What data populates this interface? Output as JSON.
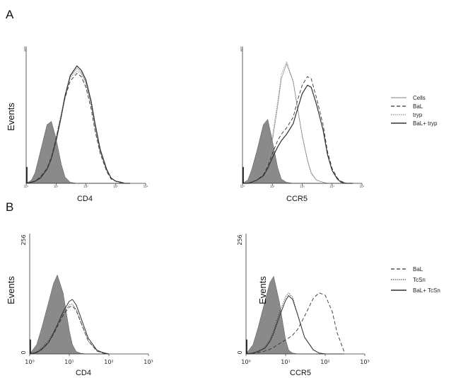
{
  "panels": {
    "A": {
      "label": "A"
    },
    "B": {
      "label": "B"
    }
  },
  "colors": {
    "filled": "#8a8a8a",
    "line": "#333333"
  },
  "chart_data": [
    {
      "id": "A-CD4",
      "type": "line",
      "panel": "A",
      "xlabel": "CD4",
      "ylabel": "Events",
      "xscale": "log",
      "xlim": [
        1,
        10000
      ],
      "xticks": [
        "10⁰",
        "10¹",
        "10²",
        "10³",
        "10⁴"
      ],
      "ylim": [
        0,
        128
      ],
      "yticks": [
        "128"
      ],
      "x": [
        1,
        1.5,
        2,
        3,
        5,
        7,
        10,
        15,
        20,
        30,
        50,
        70,
        100,
        150,
        200,
        300,
        500,
        700,
        1000,
        1500,
        2000,
        3000
      ],
      "filled": [
        0,
        3,
        10,
        30,
        55,
        58,
        42,
        18,
        6,
        1,
        0,
        0,
        0,
        0,
        0,
        0,
        0,
        0,
        0,
        0,
        0,
        0
      ],
      "series": [
        {
          "name": "Cells",
          "style": "solid",
          "values": [
            0,
            1,
            2,
            5,
            12,
            22,
            38,
            62,
            80,
            100,
            108,
            104,
            95,
            75,
            55,
            30,
            12,
            5,
            2,
            1,
            0,
            0
          ]
        },
        {
          "name": "BaL",
          "style": "dashed",
          "values": [
            0,
            1,
            2,
            6,
            14,
            25,
            42,
            64,
            80,
            96,
            103,
            100,
            90,
            70,
            50,
            28,
            11,
            4,
            2,
            0,
            0,
            0
          ]
        },
        {
          "name": "tryp",
          "style": "dotted",
          "values": [
            0,
            1,
            3,
            7,
            15,
            26,
            44,
            66,
            83,
            99,
            105,
            103,
            93,
            73,
            52,
            29,
            12,
            5,
            2,
            1,
            0,
            0
          ]
        },
        {
          "name": "BaL+ tryp",
          "style": "solid",
          "values": [
            0,
            1,
            2,
            5,
            13,
            23,
            40,
            63,
            82,
            101,
            110,
            106,
            97,
            77,
            57,
            32,
            13,
            5,
            2,
            1,
            0,
            0
          ]
        }
      ]
    },
    {
      "id": "A-CCR5",
      "type": "line",
      "panel": "A",
      "xlabel": "CCR5",
      "ylabel": "",
      "xscale": "log",
      "xlim": [
        1,
        10000
      ],
      "xticks": [
        "10⁰",
        "10¹",
        "10²",
        "10³",
        "10⁴"
      ],
      "ylim": [
        0,
        128
      ],
      "yticks": [
        "128"
      ],
      "x": [
        1,
        1.5,
        2,
        3,
        5,
        7,
        10,
        15,
        20,
        30,
        50,
        70,
        100,
        150,
        200,
        300,
        500,
        700,
        1000,
        1500,
        2000,
        3000,
        5000
      ],
      "filled": [
        0,
        3,
        12,
        30,
        55,
        60,
        40,
        15,
        4,
        1,
        0,
        0,
        0,
        0,
        0,
        0,
        0,
        0,
        0,
        0,
        0,
        0,
        0
      ],
      "legend": {
        "position": "right",
        "entries": [
          "Cells",
          "BaL",
          "tryp",
          "BaL+ tryp"
        ]
      },
      "series": [
        {
          "name": "Cells",
          "style": "solid",
          "values": [
            0,
            1,
            2,
            4,
            10,
            22,
            40,
            72,
            98,
            112,
            95,
            70,
            45,
            22,
            10,
            3,
            1,
            0,
            0,
            0,
            0,
            0,
            0
          ]
        },
        {
          "name": "BaL",
          "style": "dashed",
          "values": [
            0,
            0,
            1,
            3,
            8,
            16,
            28,
            40,
            46,
            52,
            62,
            78,
            92,
            100,
            98,
            80,
            55,
            30,
            14,
            5,
            2,
            0,
            0
          ]
        },
        {
          "name": "tryp",
          "style": "dotted",
          "values": [
            0,
            1,
            2,
            4,
            11,
            24,
            44,
            76,
            102,
            114,
            96,
            70,
            44,
            21,
            9,
            3,
            1,
            0,
            0,
            0,
            0,
            0,
            0
          ]
        },
        {
          "name": "BaL+ tryp",
          "style": "solid",
          "values": [
            0,
            0,
            1,
            3,
            7,
            14,
            24,
            34,
            40,
            46,
            56,
            70,
            84,
            92,
            90,
            74,
            50,
            27,
            12,
            4,
            1,
            0,
            0
          ]
        }
      ]
    },
    {
      "id": "B-CD4",
      "type": "line",
      "panel": "B",
      "xlabel": "CD4",
      "ylabel": "Events",
      "xscale": "log",
      "xlim": [
        1,
        1000
      ],
      "xticks": [
        "10⁰",
        "10¹",
        "10²",
        "10³"
      ],
      "ylim": [
        0,
        256
      ],
      "yticks": [
        "256",
        "0"
      ],
      "x": [
        1,
        1.5,
        2,
        3,
        4,
        5,
        7,
        10,
        12,
        15,
        20,
        30,
        50,
        70,
        100
      ],
      "filled": [
        0,
        20,
        55,
        110,
        150,
        168,
        130,
        50,
        20,
        5,
        1,
        0,
        0,
        0,
        0
      ],
      "series": [
        {
          "name": "BaL",
          "style": "dashed",
          "values": [
            0,
            4,
            10,
            25,
            42,
            58,
            82,
            100,
            102,
            92,
            65,
            28,
            6,
            2,
            0
          ]
        },
        {
          "name": "TcSn",
          "style": "dotted",
          "values": [
            0,
            4,
            12,
            28,
            46,
            62,
            86,
            104,
            106,
            94,
            66,
            28,
            7,
            2,
            0
          ]
        },
        {
          "name": "BaL+ TcSn",
          "style": "solid",
          "values": [
            0,
            3,
            9,
            24,
            44,
            62,
            90,
            112,
            116,
            104,
            75,
            34,
            8,
            3,
            0
          ]
        }
      ]
    },
    {
      "id": "B-CCR5",
      "type": "line",
      "panel": "B",
      "xlabel": "CCR5",
      "ylabel": "Events",
      "xscale": "log",
      "xlim": [
        1,
        1000
      ],
      "xticks": [
        "10⁰",
        "10¹",
        "10²",
        "10³"
      ],
      "ylim": [
        0,
        256
      ],
      "yticks": [
        "256",
        "0"
      ],
      "x": [
        1,
        1.5,
        2,
        3,
        4,
        5,
        7,
        10,
        12,
        15,
        20,
        30,
        50,
        70,
        100,
        150,
        200,
        300
      ],
      "filled": [
        0,
        20,
        55,
        112,
        152,
        165,
        110,
        30,
        8,
        2,
        0,
        0,
        0,
        0,
        0,
        0,
        0,
        0
      ],
      "legend": {
        "position": "right",
        "entries": [
          "BaL",
          "TcSn",
          "BaL+ TcSn"
        ]
      },
      "series": [
        {
          "name": "BaL",
          "style": "dashed",
          "values": [
            0,
            1,
            3,
            6,
            10,
            14,
            22,
            30,
            34,
            40,
            52,
            80,
            118,
            130,
            125,
            90,
            45,
            5
          ]
        },
        {
          "name": "TcSn",
          "style": "dotted",
          "values": [
            0,
            2,
            6,
            14,
            30,
            50,
            88,
            122,
            130,
            120,
            85,
            35,
            8,
            2,
            0,
            0,
            0,
            0
          ]
        },
        {
          "name": "BaL+ TcSn",
          "style": "solid",
          "values": [
            0,
            2,
            5,
            12,
            26,
            44,
            80,
            114,
            124,
            116,
            84,
            36,
            9,
            2,
            0,
            0,
            0,
            0
          ]
        }
      ]
    }
  ]
}
